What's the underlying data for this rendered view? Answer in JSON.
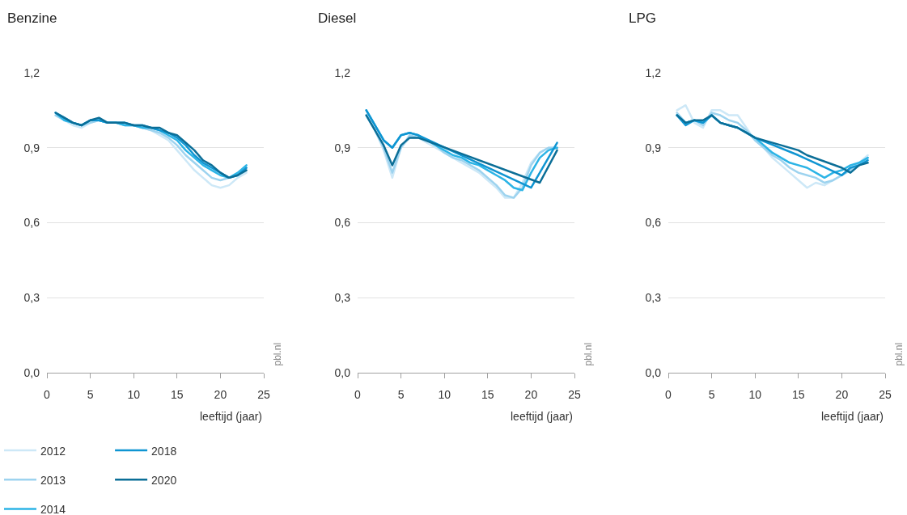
{
  "chart_data": [
    {
      "type": "line",
      "title": "Benzine",
      "xlabel": "leeftijd (jaar)",
      "xlim": [
        0,
        25
      ],
      "xticks": [
        0,
        5,
        10,
        15,
        20,
        25
      ],
      "ylim": [
        0,
        1.2
      ],
      "yticks": [
        {
          "value": 0,
          "label": "0,0"
        },
        {
          "value": 0.3,
          "label": "0,3"
        },
        {
          "value": 0.6,
          "label": "0,6"
        },
        {
          "value": 0.9,
          "label": "0,9"
        },
        {
          "value": 1.2,
          "label": "1,2"
        }
      ],
      "grid": "y",
      "legend": "bottom left",
      "annotations": [
        "pbl.nl"
      ],
      "x": [
        1,
        2,
        3,
        4,
        5,
        6,
        7,
        8,
        9,
        10,
        11,
        12,
        13,
        14,
        15,
        16,
        17,
        18,
        19,
        20,
        21,
        22,
        23
      ],
      "series": [
        {
          "name": "2012",
          "color": "#cde8f7",
          "values": [
            1.03,
            1.01,
            0.99,
            0.98,
            1.0,
            1.01,
            1.0,
            1.0,
            0.99,
            0.99,
            0.98,
            0.97,
            0.95,
            0.93,
            0.89,
            0.85,
            0.81,
            0.78,
            0.75,
            0.74,
            0.75,
            0.78,
            0.8
          ]
        },
        {
          "name": "2013",
          "color": "#9dd3ef",
          "values": [
            1.03,
            1.01,
            1.0,
            0.99,
            1.0,
            1.01,
            1.0,
            1.0,
            0.99,
            0.99,
            0.98,
            0.97,
            0.96,
            0.94,
            0.91,
            0.87,
            0.84,
            0.81,
            0.78,
            0.77,
            0.78,
            0.79,
            0.82
          ]
        },
        {
          "name": "2014",
          "color": "#2cb4e6",
          "values": [
            1.04,
            1.01,
            1.0,
            0.99,
            1.01,
            1.01,
            1.0,
            1.0,
            0.99,
            0.99,
            0.98,
            0.98,
            0.97,
            0.95,
            0.93,
            0.89,
            0.86,
            0.83,
            0.81,
            0.79,
            0.78,
            0.8,
            0.83
          ]
        },
        {
          "name": "2018",
          "color": "#0f95d2",
          "values": [
            1.04,
            1.02,
            1.0,
            0.99,
            1.01,
            1.01,
            1.0,
            1.0,
            1.0,
            0.99,
            0.99,
            0.98,
            0.97,
            0.96,
            0.94,
            0.91,
            0.87,
            0.84,
            0.82,
            0.8,
            0.78,
            0.79,
            0.82
          ]
        },
        {
          "name": "2020",
          "color": "#0b6e97",
          "values": [
            1.04,
            1.02,
            1.0,
            0.99,
            1.01,
            1.02,
            1.0,
            1.0,
            1.0,
            0.99,
            0.99,
            0.98,
            0.98,
            0.96,
            0.95,
            0.92,
            0.89,
            0.85,
            0.83,
            0.8,
            0.78,
            0.79,
            0.81
          ]
        }
      ]
    },
    {
      "type": "line",
      "title": "Diesel",
      "xlabel": "leeftijd (jaar)",
      "xlim": [
        0,
        25
      ],
      "xticks": [
        0,
        5,
        10,
        15,
        20,
        25
      ],
      "ylim": [
        0,
        1.2
      ],
      "yticks": [
        {
          "value": 0,
          "label": "0,0"
        },
        {
          "value": 0.3,
          "label": "0,3"
        },
        {
          "value": 0.6,
          "label": "0,6"
        },
        {
          "value": 0.9,
          "label": "0,9"
        },
        {
          "value": 1.2,
          "label": "1,2"
        }
      ],
      "grid": "y",
      "annotations": [
        "pbl.nl"
      ],
      "x": [
        1,
        2,
        3,
        4,
        5,
        6,
        7,
        8,
        9,
        10,
        11,
        12,
        13,
        14,
        15,
        16,
        17,
        18,
        19,
        20,
        21,
        22,
        23
      ],
      "series": [
        {
          "name": "2012",
          "color": "#cde8f7",
          "values": [
            1.03,
            0.97,
            0.89,
            0.78,
            0.9,
            0.94,
            0.94,
            0.92,
            0.9,
            0.88,
            0.86,
            0.84,
            0.82,
            0.8,
            0.77,
            0.74,
            0.7,
            0.7,
            0.76,
            0.84,
            0.88,
            0.9,
            0.9
          ]
        },
        {
          "name": "2013",
          "color": "#9dd3ef",
          "values": [
            1.03,
            0.97,
            0.9,
            0.8,
            0.9,
            0.95,
            0.94,
            0.93,
            0.91,
            0.88,
            0.86,
            0.85,
            0.83,
            0.81,
            0.78,
            0.75,
            0.71,
            0.7,
            0.74,
            0.83,
            0.88,
            0.9,
            0.9
          ]
        },
        {
          "name": "2014",
          "color": "#2cb4e6",
          "values": [
            1.05,
            0.99,
            0.93,
            0.9,
            0.95,
            0.96,
            0.95,
            0.93,
            0.91,
            0.89,
            0.87,
            0.86,
            0.84,
            0.83,
            0.81,
            0.79,
            0.77,
            0.74,
            0.73,
            0.8,
            0.86,
            0.89,
            0.9
          ]
        },
        {
          "name": "2018",
          "color": "#0f95d2",
          "x": [
            1,
            2,
            3,
            4,
            5,
            6,
            7,
            20,
            23
          ],
          "values": [
            1.05,
            0.99,
            0.93,
            0.9,
            0.95,
            0.96,
            0.95,
            0.74,
            0.92
          ]
        },
        {
          "name": "2020",
          "color": "#0b6e97",
          "x": [
            1,
            2,
            3,
            4,
            5,
            6,
            7,
            21,
            23
          ],
          "values": [
            1.03,
            0.97,
            0.91,
            0.83,
            0.91,
            0.94,
            0.94,
            0.76,
            0.89
          ]
        }
      ]
    },
    {
      "type": "line",
      "title": "LPG",
      "xlabel": "leeftijd (jaar)",
      "xlim": [
        0,
        25
      ],
      "xticks": [
        0,
        5,
        10,
        15,
        20,
        25
      ],
      "ylim": [
        0,
        1.2
      ],
      "yticks": [
        {
          "value": 0,
          "label": "0,0"
        },
        {
          "value": 0.3,
          "label": "0,3"
        },
        {
          "value": 0.6,
          "label": "0,6"
        },
        {
          "value": 0.9,
          "label": "0,9"
        },
        {
          "value": 1.2,
          "label": "1,2"
        }
      ],
      "grid": "y",
      "annotations": [
        "pbl.nl"
      ],
      "x": [
        1,
        2,
        3,
        4,
        5,
        6,
        7,
        8,
        9,
        10,
        11,
        12,
        13,
        14,
        15,
        16,
        17,
        18,
        19,
        20,
        21,
        22,
        23
      ],
      "series": [
        {
          "name": "2012",
          "color": "#cde8f7",
          "values": [
            1.05,
            1.07,
            1.0,
            0.98,
            1.05,
            1.05,
            1.03,
            1.03,
            0.98,
            0.93,
            0.9,
            0.86,
            0.83,
            0.8,
            0.77,
            0.74,
            0.76,
            0.75,
            0.77,
            0.79,
            0.82,
            0.84,
            0.87
          ]
        },
        {
          "name": "2013",
          "color": "#9dd3ef",
          "values": [
            1.04,
            1.0,
            1.01,
            0.99,
            1.04,
            1.03,
            1.01,
            1.0,
            0.97,
            0.93,
            0.9,
            0.87,
            0.85,
            0.82,
            0.8,
            0.79,
            0.78,
            0.76,
            0.77,
            0.79,
            0.81,
            0.84,
            0.86
          ]
        },
        {
          "name": "2014",
          "color": "#2cb4e6",
          "values": [
            1.03,
            1.0,
            1.01,
            1.0,
            1.03,
            1.0,
            0.99,
            0.98,
            0.96,
            0.94,
            0.91,
            0.88,
            0.86,
            0.84,
            0.83,
            0.82,
            0.8,
            0.78,
            0.8,
            0.81,
            0.83,
            0.84,
            0.86
          ]
        },
        {
          "name": "2018",
          "color": "#0f95d2",
          "x": [
            1,
            2,
            3,
            4,
            5,
            6,
            7,
            8,
            9,
            10,
            15,
            20,
            21,
            22,
            23
          ],
          "values": [
            1.03,
            0.99,
            1.01,
            1.0,
            1.03,
            1.0,
            0.99,
            0.98,
            0.96,
            0.94,
            0.87,
            0.79,
            0.82,
            0.83,
            0.85
          ]
        },
        {
          "name": "2020",
          "color": "#0b6e97",
          "x": [
            1,
            2,
            3,
            4,
            5,
            6,
            7,
            8,
            9,
            10,
            13,
            15,
            16,
            20,
            21,
            22,
            23
          ],
          "values": [
            1.03,
            1.0,
            1.01,
            1.01,
            1.03,
            1.0,
            0.99,
            0.98,
            0.96,
            0.94,
            0.91,
            0.89,
            0.87,
            0.82,
            0.8,
            0.83,
            0.84
          ]
        }
      ]
    }
  ]
}
